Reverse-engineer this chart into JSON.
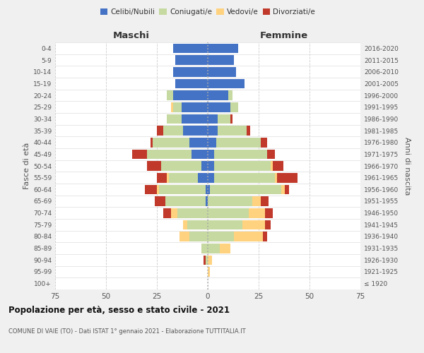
{
  "age_groups": [
    "100+",
    "95-99",
    "90-94",
    "85-89",
    "80-84",
    "75-79",
    "70-74",
    "65-69",
    "60-64",
    "55-59",
    "50-54",
    "45-49",
    "40-44",
    "35-39",
    "30-34",
    "25-29",
    "20-24",
    "15-19",
    "10-14",
    "5-9",
    "0-4"
  ],
  "birth_years": [
    "≤ 1920",
    "1921-1925",
    "1926-1930",
    "1931-1935",
    "1936-1940",
    "1941-1945",
    "1946-1950",
    "1951-1955",
    "1956-1960",
    "1961-1965",
    "1966-1970",
    "1971-1975",
    "1976-1980",
    "1981-1985",
    "1986-1990",
    "1991-1995",
    "1996-2000",
    "2001-2005",
    "2006-2010",
    "2011-2015",
    "2016-2020"
  ],
  "maschi": {
    "celibi": [
      0,
      0,
      0,
      0,
      0,
      0,
      0,
      1,
      1,
      5,
      3,
      8,
      9,
      12,
      13,
      13,
      17,
      16,
      17,
      16,
      17
    ],
    "coniugati": [
      0,
      0,
      1,
      3,
      9,
      10,
      15,
      20,
      23,
      14,
      20,
      22,
      18,
      10,
      7,
      4,
      3,
      0,
      0,
      0,
      0
    ],
    "vedovi": [
      0,
      0,
      0,
      0,
      5,
      2,
      3,
      0,
      1,
      1,
      0,
      0,
      0,
      0,
      0,
      1,
      0,
      0,
      0,
      0,
      0
    ],
    "divorziati": [
      0,
      0,
      1,
      0,
      0,
      0,
      4,
      5,
      6,
      5,
      7,
      7,
      1,
      3,
      0,
      0,
      0,
      0,
      0,
      0,
      0
    ]
  },
  "femmine": {
    "nubili": [
      0,
      0,
      0,
      0,
      0,
      0,
      0,
      0,
      1,
      3,
      3,
      3,
      4,
      5,
      5,
      11,
      10,
      18,
      14,
      13,
      15
    ],
    "coniugate": [
      0,
      0,
      0,
      6,
      13,
      17,
      20,
      22,
      35,
      30,
      28,
      26,
      22,
      14,
      6,
      4,
      2,
      0,
      0,
      0,
      0
    ],
    "vedove": [
      0,
      1,
      2,
      5,
      14,
      11,
      8,
      4,
      2,
      1,
      1,
      0,
      0,
      0,
      0,
      0,
      0,
      0,
      0,
      0,
      0
    ],
    "divorziate": [
      0,
      0,
      0,
      0,
      2,
      3,
      4,
      4,
      2,
      10,
      5,
      4,
      3,
      2,
      1,
      0,
      0,
      0,
      0,
      0,
      0
    ]
  },
  "colors": {
    "celibi_nubili": "#4472c4",
    "coniugati_e": "#c5d9a0",
    "vedovi_e": "#ffd27f",
    "divorziati_e": "#c0392b"
  },
  "xlim": 75,
  "title": "Popolazione per età, sesso e stato civile - 2021",
  "subtitle": "COMUNE DI VAIE (TO) - Dati ISTAT 1° gennaio 2021 - Elaborazione TUTTITALIA.IT",
  "ylabel_left": "Fasce di età",
  "ylabel_right": "Anni di nascita",
  "xlabel_left": "Maschi",
  "xlabel_right": "Femmine",
  "legend_labels": [
    "Celibi/Nubili",
    "Coniugati/e",
    "Vedovi/e",
    "Divorziati/e"
  ],
  "bg_color": "#f0f0f0",
  "plot_bg": "#ffffff"
}
